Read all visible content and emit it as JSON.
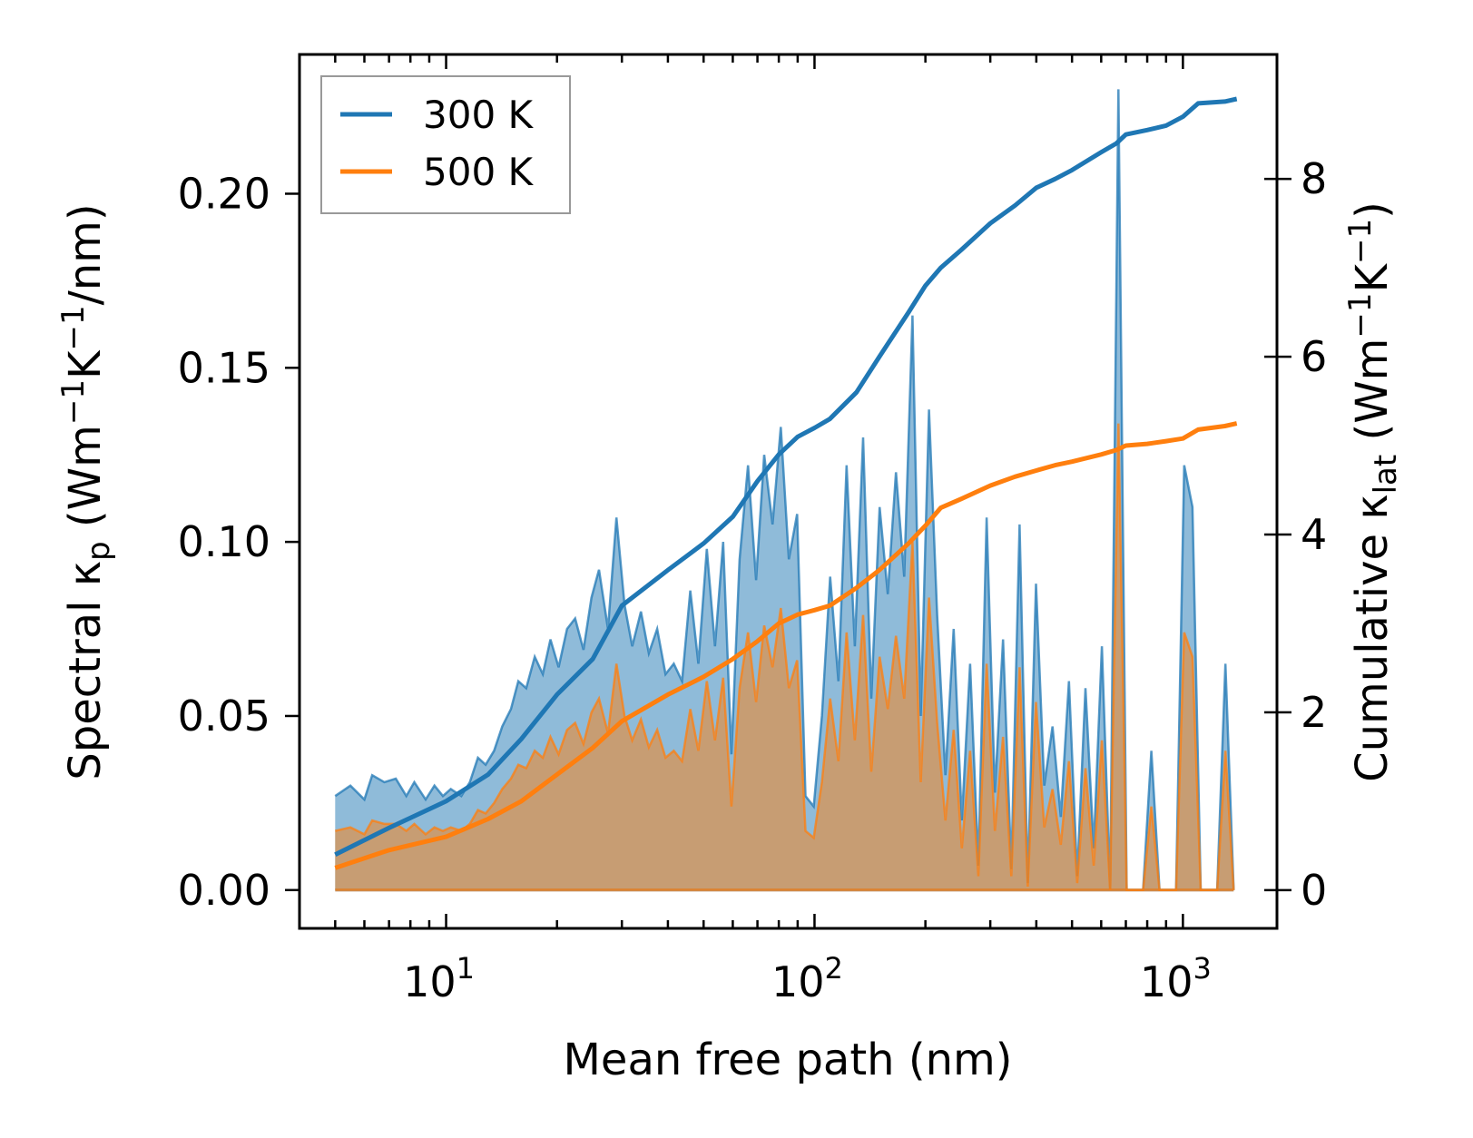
{
  "chart_data": {
    "type": "line",
    "x_scale": "log",
    "xlabel": "Mean free path (nm)",
    "ylabel_left": "Spectral κp (Wm−1K−1/nm)",
    "ylabel_right": "Cumulative κlat (Wm−1K−1)",
    "xlim": [
      4,
      1800
    ],
    "ylim_left": [
      -0.011,
      0.24
    ],
    "ylim_right": [
      -0.43,
      9.4
    ],
    "x_ticks": [
      {
        "value": 10,
        "base": "10",
        "exp": "1"
      },
      {
        "value": 100,
        "base": "10",
        "exp": "2"
      },
      {
        "value": 1000,
        "base": "10",
        "exp": "3"
      }
    ],
    "y_ticks_left": [
      {
        "value": 0.0,
        "label": "0.00"
      },
      {
        "value": 0.05,
        "label": "0.05"
      },
      {
        "value": 0.1,
        "label": "0.10"
      },
      {
        "value": 0.15,
        "label": "0.15"
      },
      {
        "value": 0.2,
        "label": "0.20"
      }
    ],
    "y_ticks_right": [
      {
        "value": 0,
        "label": "0"
      },
      {
        "value": 2,
        "label": "2"
      },
      {
        "value": 4,
        "label": "4"
      },
      {
        "value": 6,
        "label": "6"
      },
      {
        "value": 8,
        "label": "8"
      }
    ],
    "legend": {
      "placement": "top-left",
      "entries": [
        "300 K",
        "500 K"
      ]
    },
    "colors": {
      "t300": "#1f77b4",
      "t500": "#ff7f0e"
    },
    "spectral_300K": {
      "x": [
        5,
        5.5,
        6,
        6.3,
        6.8,
        7.3,
        7.8,
        8.2,
        8.8,
        9.3,
        9.8,
        10.3,
        11,
        11.6,
        12.2,
        12.8,
        13.5,
        14.2,
        15,
        15.7,
        16.5,
        17.4,
        18.3,
        19.2,
        20.2,
        21.3,
        22.4,
        23.6,
        24.8,
        26,
        27.5,
        29,
        30.5,
        32,
        33.8,
        35.5,
        37.4,
        39.4,
        41.5,
        43.7,
        46,
        48.4,
        51,
        53.7,
        56.5,
        59.5,
        62.6,
        66,
        69.4,
        73,
        76.9,
        81,
        85.2,
        89.7,
        94.5,
        99.5,
        104.7,
        110.3,
        116.1,
        122.2,
        128.7,
        135.5,
        142.6,
        150.2,
        158.1,
        166.4,
        175.2,
        184.5,
        194.2,
        204.5,
        215.3,
        226.7,
        238.6,
        251.2,
        264.5,
        278.5,
        293.2,
        308.7,
        325,
        342.1,
        360.2,
        379.2,
        399.3,
        420.4,
        442.6,
        466,
        490.6,
        516.5,
        543.8,
        572.5,
        602.7,
        634.6,
        668.1,
        703.4,
        740.5,
        779.6,
        820.8,
        864.1,
        909.7,
        957.8,
        1008.3,
        1061.6,
        1117.6,
        1176.7,
        1238.8,
        1304.3,
        1373
      ],
      "values": [
        0.027,
        0.03,
        0.026,
        0.033,
        0.031,
        0.032,
        0.027,
        0.031,
        0.026,
        0.03,
        0.027,
        0.029,
        0.027,
        0.031,
        0.038,
        0.036,
        0.04,
        0.047,
        0.052,
        0.06,
        0.058,
        0.067,
        0.062,
        0.072,
        0.064,
        0.075,
        0.078,
        0.069,
        0.084,
        0.092,
        0.075,
        0.107,
        0.082,
        0.07,
        0.08,
        0.068,
        0.075,
        0.062,
        0.065,
        0.06,
        0.086,
        0.065,
        0.098,
        0.07,
        0.1,
        0.039,
        0.095,
        0.122,
        0.089,
        0.125,
        0.105,
        0.133,
        0.095,
        0.108,
        0.027,
        0.024,
        0.05,
        0.09,
        0.06,
        0.122,
        0.07,
        0.13,
        0.055,
        0.11,
        0.085,
        0.12,
        0.09,
        0.165,
        0.05,
        0.138,
        0.079,
        0.033,
        0.075,
        0.02,
        0.065,
        0.007,
        0.107,
        0.028,
        0.072,
        0.006,
        0.105,
        0.002,
        0.088,
        0.03,
        0.047,
        0.021,
        0.06,
        0.004,
        0.058,
        0.012,
        0.07,
        0.0,
        0.23,
        0.0,
        0.0,
        0.0,
        0.04,
        0.0,
        0.0,
        0.0,
        0.122,
        0.11,
        0.0,
        0.0,
        0.0,
        0.065,
        0.0
      ]
    },
    "spectral_500K": {
      "x": [
        5,
        5.5,
        6,
        6.3,
        6.8,
        7.3,
        7.8,
        8.2,
        8.8,
        9.3,
        9.8,
        10.3,
        11,
        11.6,
        12.2,
        12.8,
        13.5,
        14.2,
        15,
        15.7,
        16.5,
        17.4,
        18.3,
        19.2,
        20.2,
        21.3,
        22.4,
        23.6,
        24.8,
        26,
        27.5,
        29,
        30.5,
        32,
        33.8,
        35.5,
        37.4,
        39.4,
        41.5,
        43.7,
        46,
        48.4,
        51,
        53.7,
        56.5,
        59.5,
        62.6,
        66,
        69.4,
        73,
        76.9,
        81,
        85.2,
        89.7,
        94.5,
        99.5,
        104.7,
        110.3,
        116.1,
        122.2,
        128.7,
        135.5,
        142.6,
        150.2,
        158.1,
        166.4,
        175.2,
        184.5,
        194.2,
        204.5,
        215.3,
        226.7,
        238.6,
        251.2,
        264.5,
        278.5,
        293.2,
        308.7,
        325,
        342.1,
        360.2,
        379.2,
        399.3,
        420.4,
        442.6,
        466,
        490.6,
        516.5,
        543.8,
        572.5,
        602.7,
        634.6,
        668.1,
        703.4,
        740.5,
        779.6,
        820.8,
        864.1,
        909.7,
        957.8,
        1008.3,
        1061.6,
        1117.6,
        1176.7,
        1238.8,
        1304.3,
        1373
      ],
      "values": [
        0.017,
        0.018,
        0.016,
        0.02,
        0.019,
        0.019,
        0.017,
        0.019,
        0.016,
        0.018,
        0.017,
        0.018,
        0.017,
        0.019,
        0.023,
        0.022,
        0.025,
        0.029,
        0.032,
        0.036,
        0.035,
        0.04,
        0.038,
        0.044,
        0.039,
        0.046,
        0.048,
        0.042,
        0.051,
        0.055,
        0.045,
        0.065,
        0.05,
        0.043,
        0.049,
        0.041,
        0.046,
        0.038,
        0.04,
        0.037,
        0.052,
        0.04,
        0.06,
        0.043,
        0.061,
        0.024,
        0.058,
        0.074,
        0.054,
        0.076,
        0.064,
        0.081,
        0.058,
        0.066,
        0.017,
        0.015,
        0.031,
        0.055,
        0.037,
        0.074,
        0.043,
        0.079,
        0.034,
        0.067,
        0.052,
        0.073,
        0.055,
        0.1,
        0.031,
        0.084,
        0.048,
        0.02,
        0.046,
        0.012,
        0.04,
        0.004,
        0.065,
        0.017,
        0.044,
        0.004,
        0.064,
        0.001,
        0.054,
        0.018,
        0.029,
        0.013,
        0.037,
        0.002,
        0.035,
        0.007,
        0.043,
        0.0,
        0.134,
        0.0,
        0.0,
        0.0,
        0.024,
        0.0,
        0.0,
        0.0,
        0.074,
        0.067,
        0.0,
        0.0,
        0.0,
        0.04,
        0.0
      ]
    },
    "cumulative_300K": {
      "x": [
        5,
        7,
        10,
        13,
        16,
        20,
        25,
        30,
        40,
        50,
        60,
        70,
        80,
        90,
        100,
        110,
        130,
        150,
        180,
        200,
        220,
        250,
        300,
        350,
        400,
        450,
        500,
        600,
        660,
        700,
        800,
        900,
        1000,
        1100,
        1300,
        1400
      ],
      "values": [
        0.4,
        0.7,
        1.0,
        1.3,
        1.7,
        2.2,
        2.6,
        3.2,
        3.6,
        3.9,
        4.2,
        4.6,
        4.9,
        5.1,
        5.2,
        5.3,
        5.6,
        6.0,
        6.5,
        6.8,
        7.0,
        7.2,
        7.5,
        7.7,
        7.9,
        8.0,
        8.1,
        8.3,
        8.4,
        8.5,
        8.55,
        8.6,
        8.7,
        8.85,
        8.87,
        8.9
      ]
    },
    "cumulative_500K": {
      "x": [
        5,
        7,
        10,
        13,
        16,
        20,
        25,
        30,
        40,
        50,
        60,
        70,
        80,
        90,
        100,
        110,
        130,
        150,
        180,
        200,
        220,
        250,
        300,
        350,
        400,
        450,
        500,
        600,
        660,
        700,
        800,
        900,
        1000,
        1100,
        1300,
        1400
      ],
      "values": [
        0.25,
        0.45,
        0.6,
        0.8,
        1.0,
        1.3,
        1.6,
        1.9,
        2.2,
        2.4,
        2.6,
        2.8,
        3.0,
        3.1,
        3.15,
        3.2,
        3.4,
        3.6,
        3.9,
        4.1,
        4.3,
        4.4,
        4.55,
        4.65,
        4.72,
        4.78,
        4.82,
        4.9,
        4.95,
        5.0,
        5.02,
        5.05,
        5.08,
        5.18,
        5.22,
        5.25
      ]
    }
  }
}
